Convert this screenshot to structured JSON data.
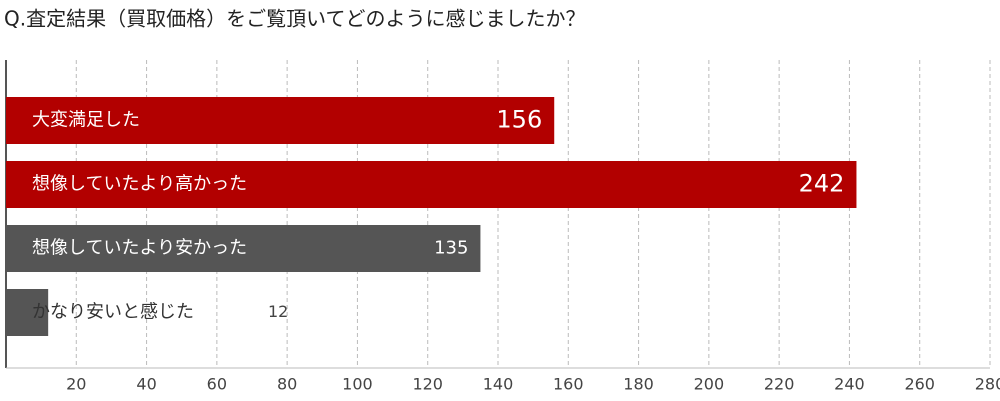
{
  "chart_data": {
    "type": "barh",
    "title": "Q.査定結果（買取価格）をご覧頂いてどのように感じましたか？",
    "categories": [
      "大変満足した",
      "想像していたより高かった",
      "想像していたより安かった",
      "かなり安いと感じた"
    ],
    "values": [
      156,
      242,
      135,
      12
    ],
    "colors": [
      "#b20000",
      "#b20000",
      "#555555",
      "#555555"
    ],
    "xlim": [
      0,
      280
    ],
    "xticks": [
      20,
      40,
      60,
      80,
      100,
      120,
      140,
      160,
      180,
      200,
      220,
      240,
      260,
      280
    ],
    "grid": true
  }
}
